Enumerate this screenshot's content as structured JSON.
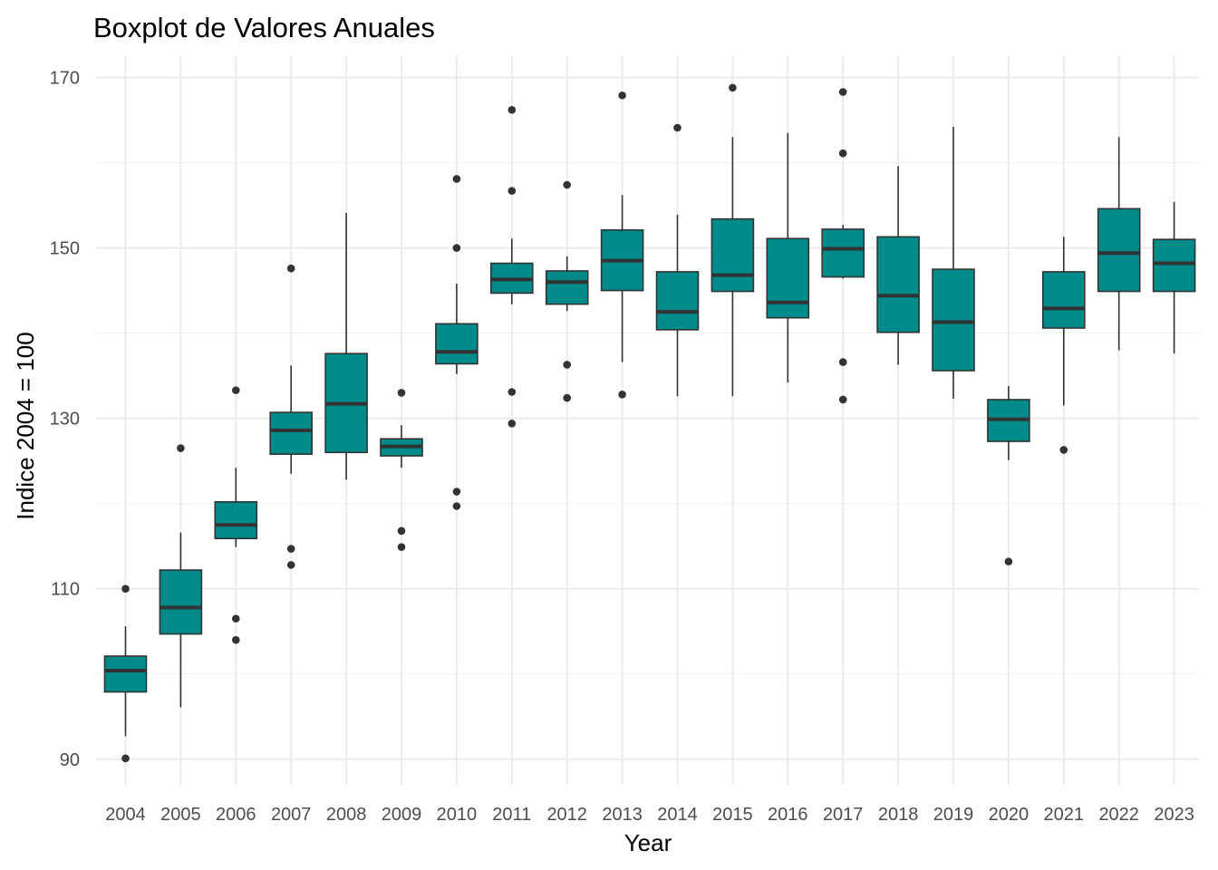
{
  "chart_data": {
    "type": "boxplot",
    "title": "Boxplot de Valores Anuales",
    "xlabel": "Year",
    "ylabel": "Indice 2004 = 100",
    "ylim": [
      87,
      172.5
    ],
    "yticks": [
      90,
      110,
      130,
      150,
      170
    ],
    "grid": true,
    "legend": "none",
    "box_color": "#008B8B",
    "line_color": "#333333",
    "categories": [
      "2004",
      "2005",
      "2006",
      "2007",
      "2008",
      "2009",
      "2010",
      "2011",
      "2012",
      "2013",
      "2014",
      "2015",
      "2016",
      "2017",
      "2018",
      "2019",
      "2020",
      "2021",
      "2022",
      "2023"
    ],
    "boxes": [
      {
        "year": "2004",
        "whisker_low": 92.7,
        "q1": 97.9,
        "median": 100.4,
        "q3": 102.1,
        "whisker_high": 105.6,
        "outliers": [
          110.0,
          90.1
        ]
      },
      {
        "year": "2005",
        "whisker_low": 96.1,
        "q1": 104.7,
        "median": 107.8,
        "q3": 112.2,
        "whisker_high": 116.6,
        "outliers": [
          126.5
        ]
      },
      {
        "year": "2006",
        "whisker_low": 114.9,
        "q1": 115.9,
        "median": 117.5,
        "q3": 120.2,
        "whisker_high": 124.2,
        "outliers": [
          133.3,
          106.5,
          104.0
        ]
      },
      {
        "year": "2007",
        "whisker_low": 123.5,
        "q1": 125.8,
        "median": 128.6,
        "q3": 130.7,
        "whisker_high": 136.2,
        "outliers": [
          147.6,
          114.7,
          112.8
        ]
      },
      {
        "year": "2008",
        "whisker_low": 122.8,
        "q1": 126.0,
        "median": 131.7,
        "q3": 137.6,
        "whisker_high": 154.1,
        "outliers": []
      },
      {
        "year": "2009",
        "whisker_low": 124.2,
        "q1": 125.6,
        "median": 126.7,
        "q3": 127.6,
        "whisker_high": 129.2,
        "outliers": [
          133.0,
          116.8,
          114.9
        ]
      },
      {
        "year": "2010",
        "whisker_low": 135.2,
        "q1": 136.4,
        "median": 137.8,
        "q3": 141.1,
        "whisker_high": 145.8,
        "outliers": [
          158.1,
          150.0,
          121.4,
          119.7
        ]
      },
      {
        "year": "2011",
        "whisker_low": 143.4,
        "q1": 144.7,
        "median": 146.3,
        "q3": 148.2,
        "whisker_high": 151.1,
        "outliers": [
          166.2,
          156.7,
          133.1,
          129.4
        ]
      },
      {
        "year": "2012",
        "whisker_low": 142.6,
        "q1": 143.4,
        "median": 146.0,
        "q3": 147.3,
        "whisker_high": 149.0,
        "outliers": [
          157.4,
          136.3,
          132.4
        ]
      },
      {
        "year": "2013",
        "whisker_low": 136.6,
        "q1": 145.0,
        "median": 148.5,
        "q3": 152.1,
        "whisker_high": 156.2,
        "outliers": [
          167.9,
          132.8
        ]
      },
      {
        "year": "2014",
        "whisker_low": 132.6,
        "q1": 140.4,
        "median": 142.5,
        "q3": 147.2,
        "whisker_high": 153.9,
        "outliers": [
          164.1
        ]
      },
      {
        "year": "2015",
        "whisker_low": 132.6,
        "q1": 144.9,
        "median": 146.8,
        "q3": 153.4,
        "whisker_high": 163.0,
        "outliers": [
          168.8
        ]
      },
      {
        "year": "2016",
        "whisker_low": 134.2,
        "q1": 141.8,
        "median": 143.6,
        "q3": 151.1,
        "whisker_high": 163.5,
        "outliers": []
      },
      {
        "year": "2017",
        "whisker_low": 146.4,
        "q1": 146.6,
        "median": 149.9,
        "q3": 152.2,
        "whisker_high": 152.7,
        "outliers": [
          168.3,
          161.1,
          136.6,
          132.2
        ]
      },
      {
        "year": "2018",
        "whisker_low": 136.3,
        "q1": 140.1,
        "median": 144.4,
        "q3": 151.3,
        "whisker_high": 159.6,
        "outliers": []
      },
      {
        "year": "2019",
        "whisker_low": 132.3,
        "q1": 135.6,
        "median": 141.3,
        "q3": 147.5,
        "whisker_high": 164.2,
        "outliers": []
      },
      {
        "year": "2020",
        "whisker_low": 125.1,
        "q1": 127.3,
        "median": 129.9,
        "q3": 132.2,
        "whisker_high": 133.8,
        "outliers": [
          113.2
        ]
      },
      {
        "year": "2021",
        "whisker_low": 131.5,
        "q1": 140.6,
        "median": 142.9,
        "q3": 147.2,
        "whisker_high": 151.3,
        "outliers": [
          126.3
        ]
      },
      {
        "year": "2022",
        "whisker_low": 138.0,
        "q1": 144.9,
        "median": 149.4,
        "q3": 154.6,
        "whisker_high": 163.0,
        "outliers": []
      },
      {
        "year": "2023",
        "whisker_low": 137.6,
        "q1": 144.9,
        "median": 148.2,
        "q3": 151.0,
        "whisker_high": 155.4,
        "outliers": []
      }
    ]
  }
}
